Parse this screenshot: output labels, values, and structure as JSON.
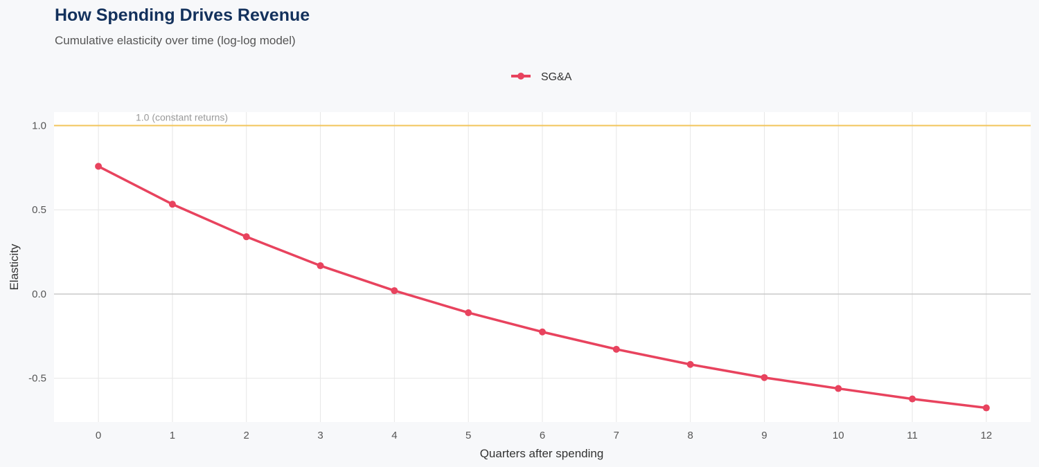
{
  "chart_data": {
    "type": "line",
    "title": "How Spending Drives Revenue",
    "subtitle": "Cumulative elasticity over time (log-log model)",
    "xlabel": "Quarters after spending",
    "ylabel": "Elasticity",
    "x": [
      0,
      1,
      2,
      3,
      4,
      5,
      6,
      7,
      8,
      9,
      10,
      11,
      12
    ],
    "xticks": [
      "0",
      "1",
      "2",
      "3",
      "4",
      "5",
      "6",
      "7",
      "8",
      "9",
      "10",
      "11",
      "12"
    ],
    "yticks": [
      {
        "v": 1.0,
        "label": "1.0"
      },
      {
        "v": 0.5,
        "label": "0.5"
      },
      {
        "v": 0.0,
        "label": "0.0"
      },
      {
        "v": -0.5,
        "label": "-0.5"
      }
    ],
    "ylim": [
      -0.76,
      1.08
    ],
    "xlim": [
      -0.6,
      12.6
    ],
    "grid": true,
    "legend_position": "top-center",
    "series": [
      {
        "name": "SG&A",
        "color": "#e8435e",
        "values": [
          0.758,
          0.533,
          0.34,
          0.168,
          0.02,
          -0.111,
          -0.225,
          -0.328,
          -0.418,
          -0.496,
          -0.561,
          -0.623,
          -0.676
        ]
      }
    ],
    "reference_line": {
      "y": 1.0,
      "label": "1.0 (constant returns)",
      "color": "#f2c45a"
    },
    "zero_line": {
      "y": 0.0,
      "color": "#c8c8c8"
    }
  }
}
